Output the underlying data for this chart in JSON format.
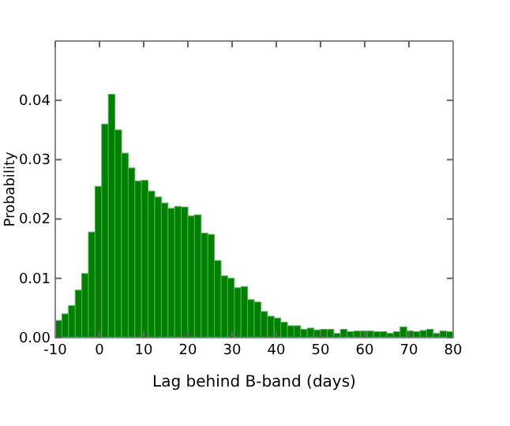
{
  "chart_data": {
    "type": "histogram",
    "xlabel": "Lag behind B-band (days)",
    "ylabel": "Probability",
    "color": "#008000",
    "bins": [
      -10,
      -8.5,
      -7,
      -5.5,
      -4,
      -2.5,
      -1,
      0.5,
      2,
      3.5,
      5,
      6.5,
      8,
      9.5,
      11,
      12.5,
      14,
      15.5,
      17,
      18.5,
      20,
      21.5,
      23,
      24.5,
      26,
      27.5,
      29,
      30.5,
      32,
      33.5,
      35,
      36.5,
      38,
      39.5,
      41,
      42.5,
      44,
      45.5,
      47,
      48.5,
      50,
      51.5,
      53,
      54.5,
      56,
      57.5,
      59,
      60.5,
      62,
      63.5,
      65,
      66.5,
      68,
      69.5,
      71,
      72.5,
      74,
      75.5,
      77,
      78.5,
      80
    ],
    "values": [
      0.0029,
      0.004,
      0.0054,
      0.008,
      0.0108,
      0.0178,
      0.0255,
      0.036,
      0.041,
      0.035,
      0.0311,
      0.0286,
      0.0264,
      0.0265,
      0.0247,
      0.0237,
      0.0227,
      0.0218,
      0.0221,
      0.022,
      0.0205,
      0.0207,
      0.0176,
      0.0174,
      0.013,
      0.0104,
      0.01,
      0.0084,
      0.0086,
      0.0064,
      0.006,
      0.0044,
      0.0036,
      0.0033,
      0.0026,
      0.002,
      0.002,
      0.0014,
      0.0016,
      0.0013,
      0.0014,
      0.0014,
      0.0007,
      0.0014,
      0.001,
      0.0011,
      0.0011,
      0.0011,
      0.001,
      0.001,
      0.0007,
      0.001,
      0.0018,
      0.0011,
      0.001,
      0.0012,
      0.0014,
      0.0007,
      0.0011,
      0.001
    ],
    "xlim": [
      -10,
      80
    ],
    "xticks": [
      -10,
      0,
      10,
      20,
      30,
      40,
      50,
      60,
      70,
      80
    ],
    "ylim": [
      0,
      0.05
    ],
    "yticks": [
      {
        "value": 0,
        "label": "0.00"
      },
      {
        "value": 0.01,
        "label": "0.01"
      },
      {
        "value": 0.02,
        "label": "0.02"
      },
      {
        "value": 0.03,
        "label": "0.03"
      },
      {
        "value": 0.04,
        "label": "0.04"
      }
    ],
    "grid": false
  }
}
